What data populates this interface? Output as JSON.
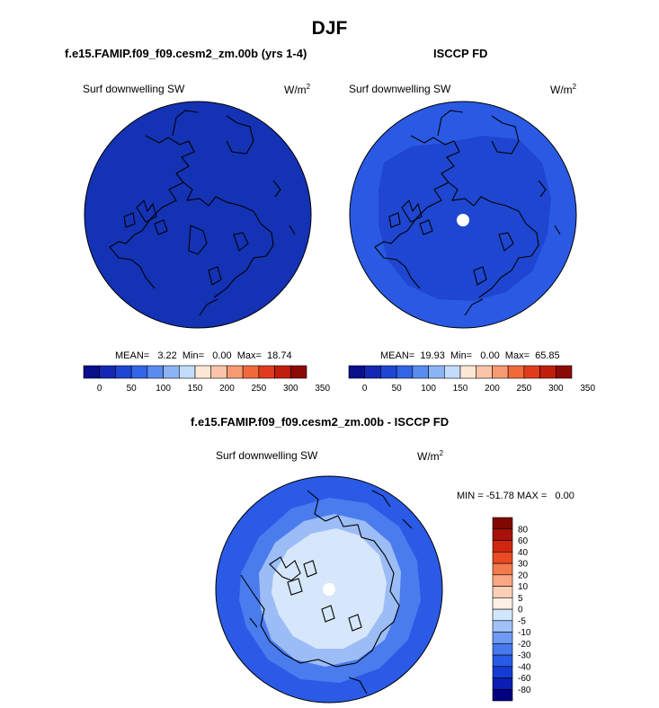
{
  "title": "DJF",
  "panels": [
    {
      "title": "f.e15.FAMIP.f09_f09.cesm2_zm.00b (yrs 1-4)",
      "variable": "Surf downwelling SW",
      "units_base": "W/m",
      "units_exp": "2",
      "stats": "MEAN=   3.22  Min=   0.00  Max=  18.74"
    },
    {
      "title": "ISCCP FD",
      "variable": "Surf downwelling SW",
      "units_base": "W/m",
      "units_exp": "2",
      "stats": "MEAN=  19.93  Min=   0.00  Max=  65.85"
    },
    {
      "title": "f.e15.FAMIP.f09_f09.cesm2_zm.00b - ISCCP FD",
      "variable": "Surf downwelling SW",
      "units_base": "W/m",
      "units_exp": "2",
      "stats": "MIN = -51.78 MAX =   0.00"
    }
  ],
  "colorbar_abs": {
    "colors": [
      "#0a0f8c",
      "#1428b4",
      "#1e46d2",
      "#3264e6",
      "#5a8cf0",
      "#8cb4f5",
      "#c3dcfa",
      "#fde8d6",
      "#fbc4a8",
      "#f79a72",
      "#f26a3c",
      "#e03c1c",
      "#c01e0c",
      "#8c0a06"
    ],
    "labels": [
      "0",
      "50",
      "100",
      "150",
      "200",
      "250",
      "300",
      "350"
    ]
  },
  "colorbar_diff": {
    "colors": [
      "#000080",
      "#0a1eb4",
      "#143cd2",
      "#285ae6",
      "#4678ee",
      "#6e9af3",
      "#a0c0f8",
      "#d2e6fc",
      "#fff0e6",
      "#fcd0b8",
      "#f8a882",
      "#f47a4e",
      "#ea4a24",
      "#d02810",
      "#a8120a",
      "#800800"
    ],
    "labels": [
      "-80",
      "-60",
      "-40",
      "-30",
      "-20",
      "-10",
      "-5",
      "0",
      "5",
      "10",
      "20",
      "30",
      "40",
      "60",
      "80"
    ]
  },
  "map_colors": {
    "model_fill": "#1432b4",
    "obs_outer": "#2a5ae4",
    "obs_inner": "#1e46d0",
    "diff_outer": "#2a5ae6",
    "diff_mid1": "#4a7cee",
    "diff_mid2": "#9cbcf6",
    "diff_inner": "#d6e6fb",
    "pole_hole": "#ffffff",
    "coast": "#000000"
  }
}
